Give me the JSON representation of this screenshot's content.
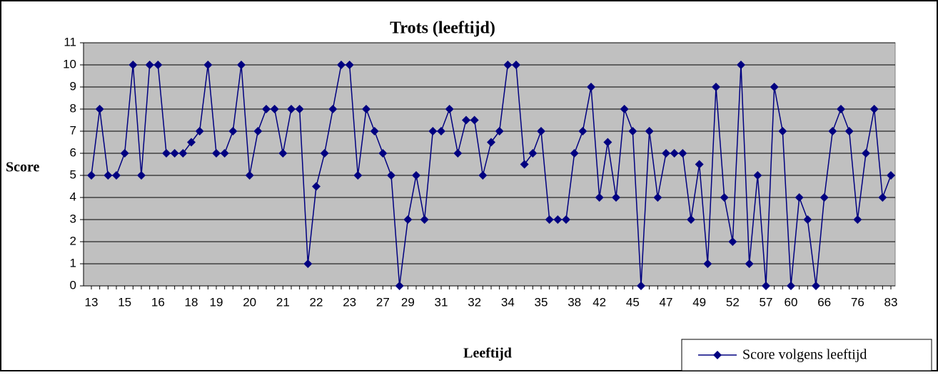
{
  "chart_data": {
    "type": "line",
    "title": "Trots (leeftijd)",
    "x_label": "Leeftijd",
    "y_label": "Score",
    "categories": [
      "13",
      null,
      null,
      null,
      "15",
      null,
      null,
      null,
      "16",
      null,
      null,
      null,
      "18",
      null,
      null,
      "19",
      null,
      null,
      null,
      "20",
      null,
      null,
      null,
      "21",
      null,
      null,
      null,
      "22",
      null,
      null,
      null,
      "23",
      null,
      null,
      null,
      "27",
      null,
      null,
      "29",
      null,
      null,
      null,
      "31",
      null,
      null,
      null,
      "32",
      null,
      null,
      null,
      "34",
      null,
      null,
      null,
      "35",
      null,
      null,
      null,
      "38",
      null,
      null,
      "42",
      null,
      null,
      null,
      "45",
      null,
      null,
      null,
      "47",
      null,
      null,
      null,
      "49",
      null,
      null,
      null,
      "52",
      null,
      null,
      null,
      "57",
      null,
      null,
      "60",
      null,
      null,
      null,
      "66",
      null,
      null,
      null,
      "76",
      null,
      null,
      null,
      "83"
    ],
    "series": [
      {
        "name": "Score volgens leeftijd",
        "color": "#000080",
        "values": [
          5,
          8,
          5,
          5,
          6,
          10,
          5,
          10,
          10,
          6,
          6,
          6,
          6.5,
          7,
          10,
          6,
          6,
          7,
          10,
          5,
          7,
          8,
          8,
          6,
          8,
          8,
          1,
          4.5,
          6,
          8,
          10,
          10,
          5,
          8,
          7,
          6,
          5,
          0,
          3,
          5,
          3,
          7,
          7,
          8,
          6,
          7.5,
          7.5,
          5,
          6.5,
          7,
          10,
          10,
          5.5,
          6,
          7,
          3,
          3,
          3,
          6,
          7,
          9,
          4,
          6.5,
          4,
          8,
          7,
          0,
          7,
          4,
          6,
          6,
          6,
          3,
          5.5,
          1,
          9,
          4,
          2,
          10,
          1,
          5,
          0,
          9,
          7,
          0,
          4,
          3,
          0,
          4,
          7,
          8,
          7,
          3,
          6,
          8,
          4,
          5
        ]
      }
    ],
    "ylim": [
      0,
      11
    ],
    "yticks": [
      0,
      1,
      2,
      3,
      4,
      5,
      6,
      7,
      8,
      9,
      10,
      11
    ],
    "grid": true,
    "plot_background": "#c0c0c0",
    "legend": "bottom-right"
  }
}
